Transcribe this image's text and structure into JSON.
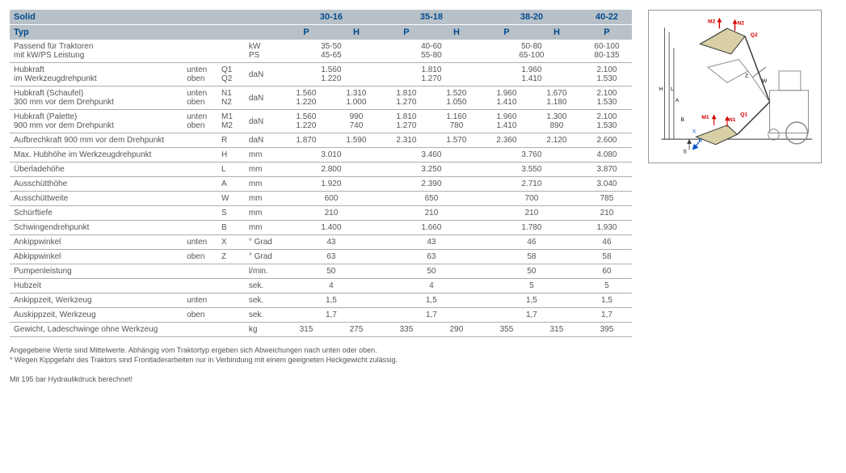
{
  "header": {
    "solid": "Solid",
    "typ": "Typ",
    "models": [
      "30-16",
      "35-18",
      "38-20",
      "40-22"
    ],
    "ph_labels": [
      "P",
      "H"
    ]
  },
  "rows": [
    {
      "label": "Passend für Traktoren\nmit kW/PS Leistung",
      "sub": "",
      "sym": "",
      "unit": "kW\nPS",
      "c": [
        [
          "35-50",
          "",
          ""
        ],
        [
          "45-65",
          "",
          ""
        ],
        [
          "40-60",
          "",
          ""
        ],
        [
          "55-80",
          "",
          ""
        ],
        [
          "50-80",
          "",
          ""
        ],
        [
          "65-100",
          "",
          ""
        ],
        [
          "60-100",
          ""
        ],
        [
          "80-135",
          ""
        ]
      ],
      "merged": true,
      "vals_merged": [
        "35-50\n45-65",
        "40-60\n55-80",
        "50-80\n65-100",
        "60-100\n80-135"
      ]
    },
    {
      "label": "Hubkraft\nim Werkzeugdrehpunkt",
      "sub": "unten\noben",
      "sym": "Q1\nQ2",
      "unit": "daN",
      "merged": true,
      "vals_merged": [
        "1.560\n1.220",
        "1.810\n1.270",
        "1.960\n1.410",
        "2.100\n1.530"
      ]
    },
    {
      "label": "Hubkraft (Schaufel)\n300 mm vor dem Drehpunkt",
      "sub": "unten\noben",
      "sym": "N1\nN2",
      "unit": "daN",
      "vals": [
        "1.560\n1.220",
        "1.310\n1.000",
        "1.810\n1.270",
        "1.520\n1.050",
        "1.960\n1.410",
        "1.670\n1.180",
        "2.100\n1.530"
      ]
    },
    {
      "label": "Hubkraft (Palette)\n900 mm vor dem Drehpunkt",
      "sub": "unten\noben",
      "sym": "M1\nM2",
      "unit": "daN",
      "vals": [
        "1.560\n1.220",
        "990\n740",
        "1.810\n1.270",
        "1.160\n780",
        "1.960\n1.410",
        "1.300\n890",
        "2.100\n1.530"
      ]
    },
    {
      "label": "Aufbrechkraft 900 mm vor dem Drehpunkt",
      "sub": "",
      "sym": "R",
      "unit": "daN",
      "vals": [
        "1.870",
        "1.590",
        "2.310",
        "1.570",
        "2.360",
        "2.120",
        "2.600"
      ]
    },
    {
      "label": "Max. Hubhöhe im Werkzeugdrehpunkt",
      "sub": "",
      "sym": "H",
      "unit": "mm",
      "merged": true,
      "vals_merged": [
        "3.010",
        "3.460",
        "3.760",
        "4.080"
      ]
    },
    {
      "label": "Überladehöhe",
      "sub": "",
      "sym": "L",
      "unit": "mm",
      "merged": true,
      "vals_merged": [
        "2.800",
        "3.250",
        "3.550",
        "3.870"
      ]
    },
    {
      "label": "Ausschütthöhe",
      "sub": "",
      "sym": "A",
      "unit": "mm",
      "merged": true,
      "vals_merged": [
        "1.920",
        "2.390",
        "2.710",
        "3.040"
      ]
    },
    {
      "label": "Ausschüttweite",
      "sub": "",
      "sym": "W",
      "unit": "mm",
      "merged": true,
      "vals_merged": [
        "600",
        "650",
        "700",
        "785"
      ]
    },
    {
      "label": "Schürftiefe",
      "sub": "",
      "sym": "S",
      "unit": "mm",
      "merged": true,
      "vals_merged": [
        "210",
        "210",
        "210",
        "210"
      ]
    },
    {
      "label": "Schwingendrehpunkt",
      "sub": "",
      "sym": "B",
      "unit": "mm",
      "merged": true,
      "vals_merged": [
        "1.400",
        "1.660",
        "1.780",
        "1.930"
      ]
    },
    {
      "label": "Ankippwinkel",
      "sub": "unten",
      "sym": "X",
      "unit": "° Grad",
      "merged": true,
      "vals_merged": [
        "43",
        "43",
        "46",
        "46"
      ]
    },
    {
      "label": "Abkippwinkel",
      "sub": "oben",
      "sym": "Z",
      "unit": "° Grad",
      "merged": true,
      "vals_merged": [
        "63",
        "63",
        "58",
        "58"
      ]
    },
    {
      "label": "Pumpenleistung",
      "sub": "",
      "sym": "",
      "unit": "l/min.",
      "merged": true,
      "vals_merged": [
        "50",
        "50",
        "50",
        "60"
      ]
    },
    {
      "label": "Hubzeit",
      "sub": "",
      "sym": "",
      "unit": "sek.",
      "merged": true,
      "vals_merged": [
        "4",
        "4",
        "5",
        "5"
      ]
    },
    {
      "label": "Ankippzeit, Werkzeug",
      "sub": "unten",
      "sym": "",
      "unit": "sek.",
      "merged": true,
      "vals_merged": [
        "1,5",
        "1,5",
        "1,5",
        "1,5"
      ]
    },
    {
      "label": "Auskippzeit, Werkzeug",
      "sub": "oben",
      "sym": "",
      "unit": "sek.",
      "merged": true,
      "vals_merged": [
        "1,7",
        "1,7",
        "1,7",
        "1,7"
      ]
    },
    {
      "label": "Gewicht, Ladeschwinge ohne Werkzeug",
      "sub": "",
      "sym": "",
      "unit": "kg",
      "vals": [
        "315",
        "275",
        "335",
        "290",
        "355",
        "315",
        "395"
      ]
    }
  ],
  "footnotes": {
    "l1": "Angegebene Werte sind Mittelwerte. Abhängig vom Traktortyp ergeben sich Abweichungen nach unten oder oben.",
    "l2": "* Wegen Kippgefahr des Traktors sind Frontladerarbeiten nur in Verbindung mit einem geeigneten Heckgewicht zulässig.",
    "l3": "Mit 195 bar Hydraulikdruck berechnet!"
  },
  "diagram": {
    "labels": {
      "M2": "M2",
      "N2": "N2",
      "Q2": "Q2",
      "Z": "Z",
      "W": "W",
      "H": "H",
      "L": "L",
      "A": "A",
      "B": "B",
      "Q1": "Q1",
      "M1": "M1",
      "N1": "N1",
      "X": "X",
      "R": "R",
      "S": "S"
    },
    "colors": {
      "red": "#d40000",
      "blue": "#0050c8",
      "gray": "#666",
      "fill": "#d9cfa7",
      "line": "#333"
    }
  },
  "style": {
    "header_bg": "#b8c1c8",
    "header_fg": "#004b8d",
    "border": "#a8b0b7",
    "text": "#555"
  }
}
